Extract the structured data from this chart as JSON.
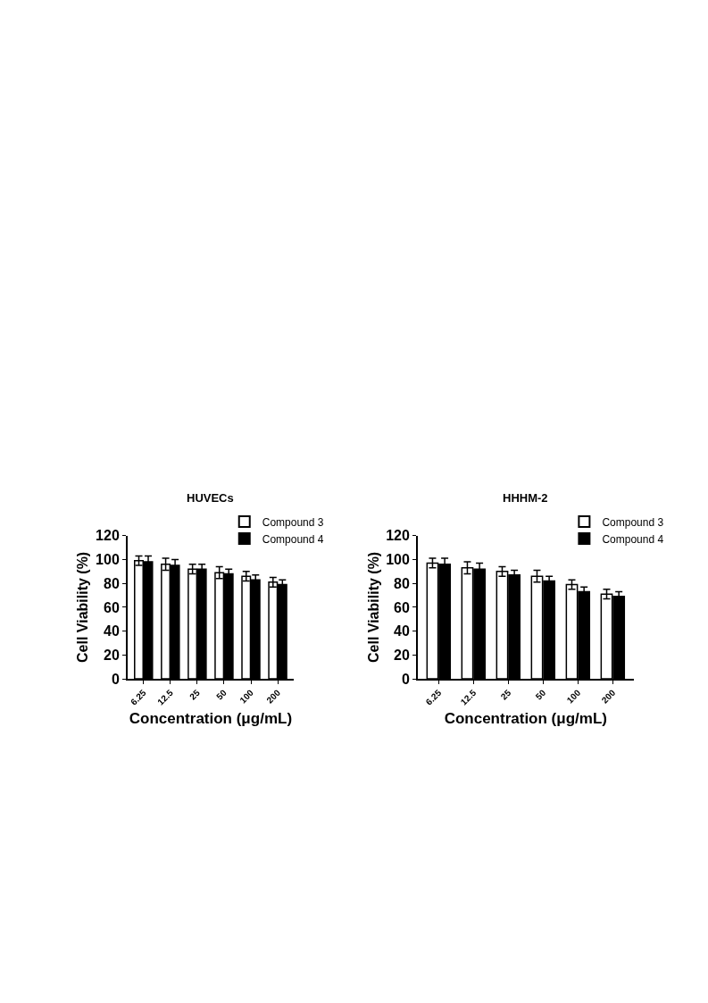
{
  "chart_data": [
    {
      "type": "bar",
      "title": "HUVECs",
      "xlabel": "Concentration (μg/mL)",
      "ylabel": "Cell Viability (%)",
      "categories": [
        "6.25",
        "12.5",
        "25",
        "50",
        "100",
        "200"
      ],
      "series": [
        {
          "name": "Compound 3",
          "color": "#ffffff",
          "values": [
            99,
            96,
            92,
            89,
            86,
            81
          ],
          "errors": [
            4,
            5,
            4,
            5,
            4,
            4
          ]
        },
        {
          "name": "Compound 4",
          "color": "#000000",
          "values": [
            98,
            95,
            92,
            88,
            83,
            79
          ],
          "errors": [
            5,
            5,
            4,
            4,
            4,
            4
          ]
        }
      ],
      "ylim": [
        0,
        120
      ],
      "yticks": [
        0,
        20,
        40,
        60,
        80,
        100,
        120
      ],
      "legend": "top right"
    },
    {
      "type": "bar",
      "title": "HHHM-2",
      "xlabel": "Concentration (μg/mL)",
      "ylabel": "Cell Viability (%)",
      "categories": [
        "6.25",
        "12.5",
        "25",
        "50",
        "100",
        "200"
      ],
      "series": [
        {
          "name": "Compound 3",
          "color": "#ffffff",
          "values": [
            97,
            93,
            90,
            86,
            79,
            71
          ],
          "errors": [
            4,
            5,
            4,
            5,
            4,
            4
          ]
        },
        {
          "name": "Compound 4",
          "color": "#000000",
          "values": [
            96,
            92,
            87,
            82,
            73,
            69
          ],
          "errors": [
            5,
            5,
            4,
            4,
            4,
            4
          ]
        }
      ],
      "ylim": [
        0,
        120
      ],
      "yticks": [
        0,
        20,
        40,
        60,
        80,
        100,
        120
      ],
      "legend": "top right"
    }
  ]
}
